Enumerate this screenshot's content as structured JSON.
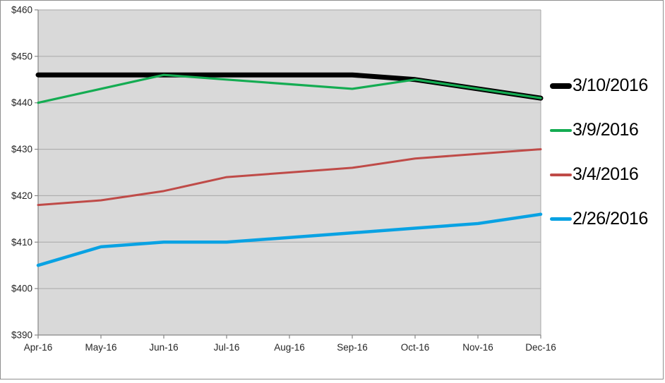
{
  "chart_data": {
    "type": "line",
    "title": "",
    "xlabel": "",
    "ylabel": "",
    "categories": [
      "Apr-16",
      "May-16",
      "Jun-16",
      "Jul-16",
      "Aug-16",
      "Sep-16",
      "Oct-16",
      "Nov-16",
      "Dec-16"
    ],
    "series": [
      {
        "name": "3/10/2016",
        "color": "#000000",
        "stroke_width": 7,
        "marker_thickness": 8,
        "values": [
          446,
          446,
          446,
          446,
          446,
          446,
          445,
          443,
          441
        ]
      },
      {
        "name": "3/9/2016",
        "color": "#14ac52",
        "stroke_width": 3.2,
        "marker_thickness": 4,
        "values": [
          440,
          443,
          446,
          445,
          444,
          443,
          445,
          443,
          441
        ]
      },
      {
        "name": "3/4/2016",
        "color": "#bf4b48",
        "stroke_width": 3,
        "marker_thickness": 4,
        "values": [
          418,
          419,
          421,
          424,
          425,
          426,
          428,
          429,
          430
        ]
      },
      {
        "name": "2/26/2016",
        "color": "#09a2e3",
        "stroke_width": 4.5,
        "marker_thickness": 5,
        "values": [
          405,
          409,
          410,
          410,
          411,
          412,
          413,
          414,
          416
        ]
      }
    ],
    "ylim": [
      390,
      460
    ],
    "y_tick_step": 10,
    "y_tick_labels": [
      "$390",
      "$400",
      "$410",
      "$420",
      "$430",
      "$440",
      "$450",
      "$460"
    ],
    "grid": "horizontal",
    "legend_position": "right",
    "colors": {
      "plot_background": "#d9d9d9",
      "gridline": "#a8a8a8",
      "axis_line": "#868686",
      "tick_label_text": "#262626",
      "outer_border": "#8f8f8f"
    }
  }
}
